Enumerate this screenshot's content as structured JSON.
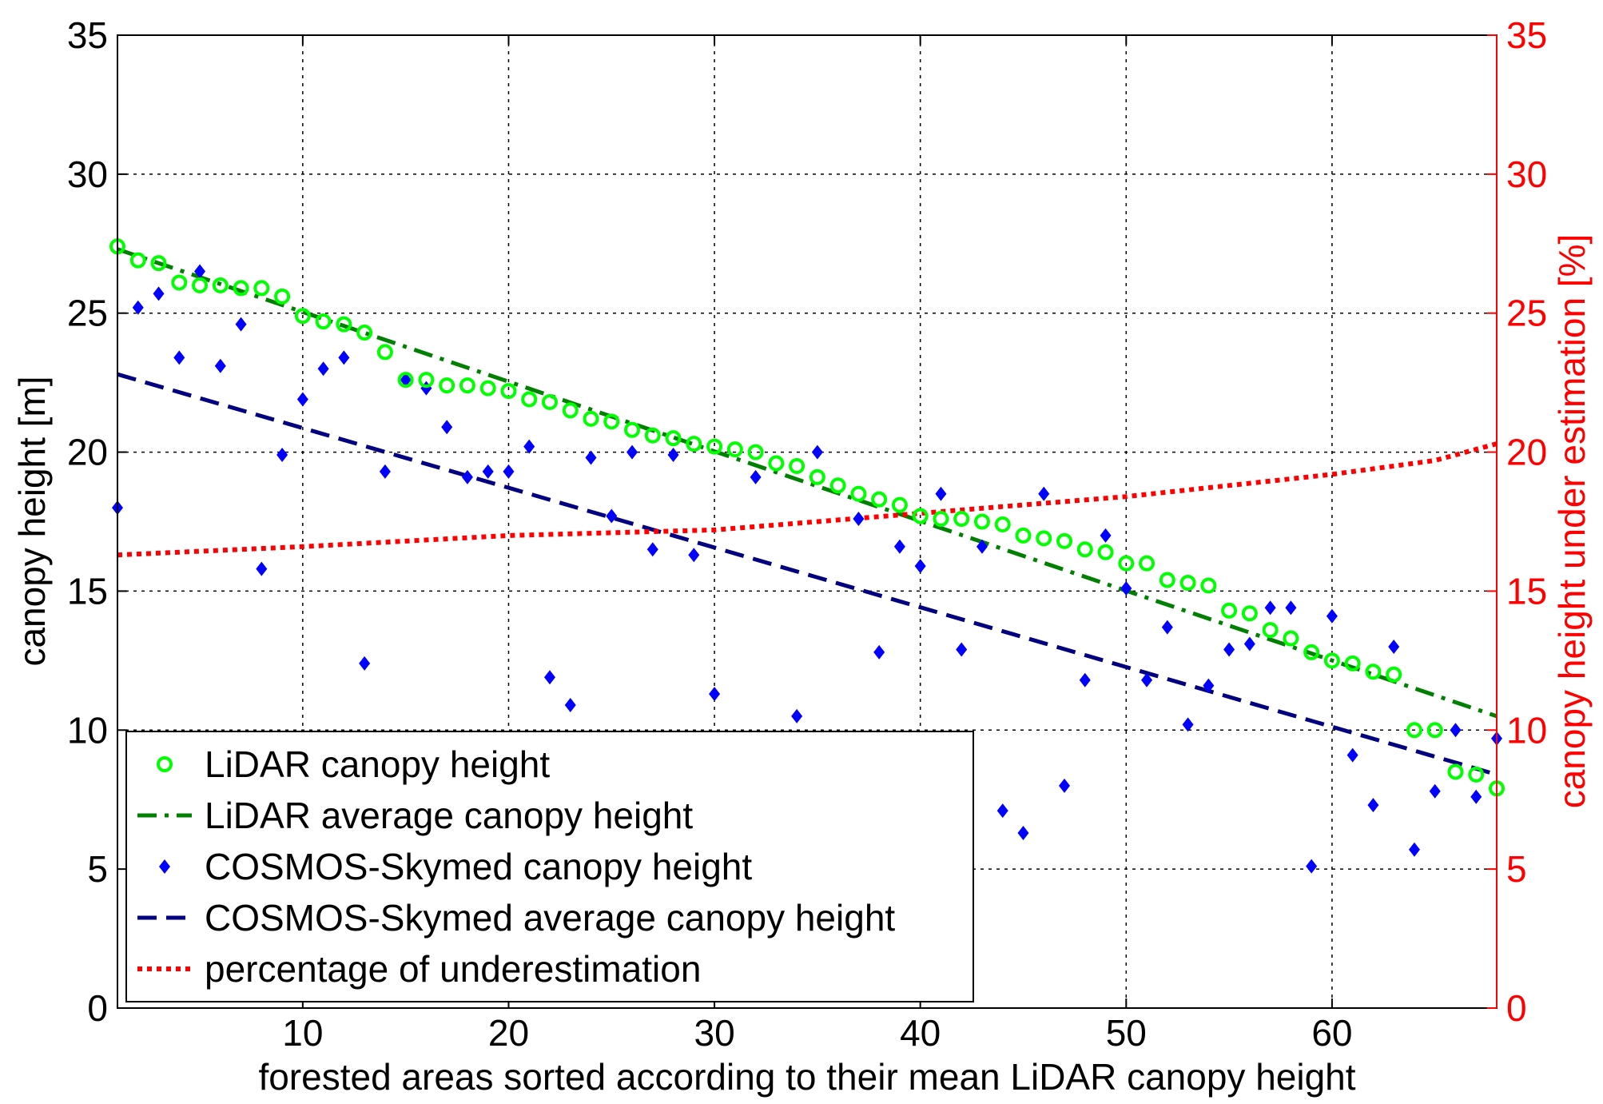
{
  "chart_data": {
    "type": "scatter",
    "xlabel": "forested areas sorted according to their mean LiDAR canopy height",
    "ylabel": "canopy height [m]",
    "y2label": "canopy height under estimation [%]",
    "xlim": [
      1,
      68
    ],
    "ylim": [
      0,
      35
    ],
    "y2lim": [
      0,
      35
    ],
    "xticks": [
      10,
      20,
      30,
      40,
      50,
      60
    ],
    "yticks": [
      0,
      5,
      10,
      15,
      20,
      25,
      30,
      35
    ],
    "y2ticks": [
      0,
      5,
      10,
      15,
      20,
      25,
      30,
      35
    ],
    "grid": true,
    "legend_position": "bottom-left",
    "colors": {
      "lidar_points": "#00ff00",
      "lidar_avg": "#008000",
      "cosmos_points": "#0000ff",
      "cosmos_avg": "#000080",
      "underestimation": "#ff0000",
      "right_axis": "#ff0000"
    },
    "series": [
      {
        "name": "LiDAR canopy height",
        "style": "circle-markers",
        "x": [
          1,
          2,
          3,
          4,
          5,
          6,
          7,
          8,
          9,
          10,
          11,
          12,
          13,
          14,
          15,
          16,
          17,
          18,
          19,
          20,
          21,
          22,
          23,
          24,
          25,
          26,
          27,
          28,
          29,
          30,
          31,
          32,
          33,
          34,
          35,
          36,
          37,
          38,
          39,
          40,
          41,
          42,
          43,
          44,
          45,
          46,
          47,
          48,
          49,
          50,
          51,
          52,
          53,
          54,
          55,
          56,
          57,
          58,
          59,
          60,
          61,
          62,
          63,
          64,
          65,
          66,
          67,
          68
        ],
        "values": [
          27.4,
          26.9,
          26.8,
          26.1,
          26.0,
          26.0,
          25.9,
          25.9,
          25.6,
          24.9,
          24.7,
          24.6,
          24.3,
          23.6,
          22.6,
          22.6,
          22.4,
          22.4,
          22.3,
          22.2,
          21.9,
          21.8,
          21.5,
          21.2,
          21.1,
          20.8,
          20.6,
          20.5,
          20.3,
          20.2,
          20.1,
          20.0,
          19.6,
          19.5,
          19.1,
          18.8,
          18.5,
          18.3,
          18.1,
          17.7,
          17.6,
          17.6,
          17.5,
          17.4,
          17.0,
          16.9,
          16.8,
          16.5,
          16.4,
          16.0,
          16.0,
          15.4,
          15.3,
          15.2,
          14.3,
          14.2,
          13.6,
          13.3,
          12.8,
          12.5,
          12.4,
          12.1,
          12.0,
          10.0,
          10.0,
          8.5,
          8.4,
          7.9
        ]
      },
      {
        "name": "LiDAR average canopy height",
        "style": "dash-dot-line",
        "x": [
          1,
          68
        ],
        "values": [
          27.3,
          10.5
        ]
      },
      {
        "name": "COSMOS-Skymed canopy height",
        "style": "diamond-markers",
        "x": [
          1,
          2,
          3,
          4,
          5,
          6,
          7,
          8,
          9,
          10,
          11,
          12,
          13,
          14,
          15,
          16,
          17,
          18,
          19,
          20,
          21,
          22,
          23,
          24,
          25,
          26,
          27,
          28,
          29,
          30,
          32,
          34,
          35,
          37,
          38,
          39,
          40,
          41,
          42,
          43,
          44,
          45,
          46,
          47,
          48,
          49,
          50,
          51,
          52,
          53,
          54,
          55,
          56,
          57,
          58,
          59,
          60,
          61,
          62,
          63,
          64,
          65,
          66,
          67,
          68
        ],
        "values": [
          18.0,
          25.2,
          25.7,
          23.4,
          26.5,
          23.1,
          24.6,
          15.8,
          19.9,
          21.9,
          23.0,
          23.4,
          12.4,
          19.3,
          22.6,
          22.3,
          20.9,
          19.1,
          19.3,
          19.3,
          20.2,
          11.9,
          10.9,
          19.8,
          17.7,
          20.0,
          16.5,
          19.9,
          16.3,
          11.3,
          19.1,
          10.5,
          20.0,
          17.6,
          12.8,
          16.6,
          15.9,
          18.5,
          12.9,
          16.6,
          7.1,
          6.3,
          18.5,
          8.0,
          11.8,
          17.0,
          15.1,
          11.8,
          13.7,
          10.2,
          11.6,
          12.9,
          13.1,
          14.4,
          14.4,
          5.1,
          14.1,
          9.1,
          7.3,
          13.0,
          5.7,
          7.8,
          10.0,
          7.6,
          9.7
        ]
      },
      {
        "name": "COSMOS-Skymed average canopy height",
        "style": "dashed-line",
        "x": [
          1,
          68
        ],
        "values": [
          22.8,
          8.4
        ]
      },
      {
        "name": "percentage of underestimation",
        "style": "dotted-line",
        "axis": "right",
        "x": [
          1,
          10,
          20,
          30,
          35,
          40,
          45,
          50,
          55,
          60,
          65,
          68
        ],
        "values": [
          16.3,
          16.6,
          17.0,
          17.2,
          17.5,
          17.8,
          18.1,
          18.4,
          18.8,
          19.2,
          19.7,
          20.3
        ]
      }
    ]
  }
}
